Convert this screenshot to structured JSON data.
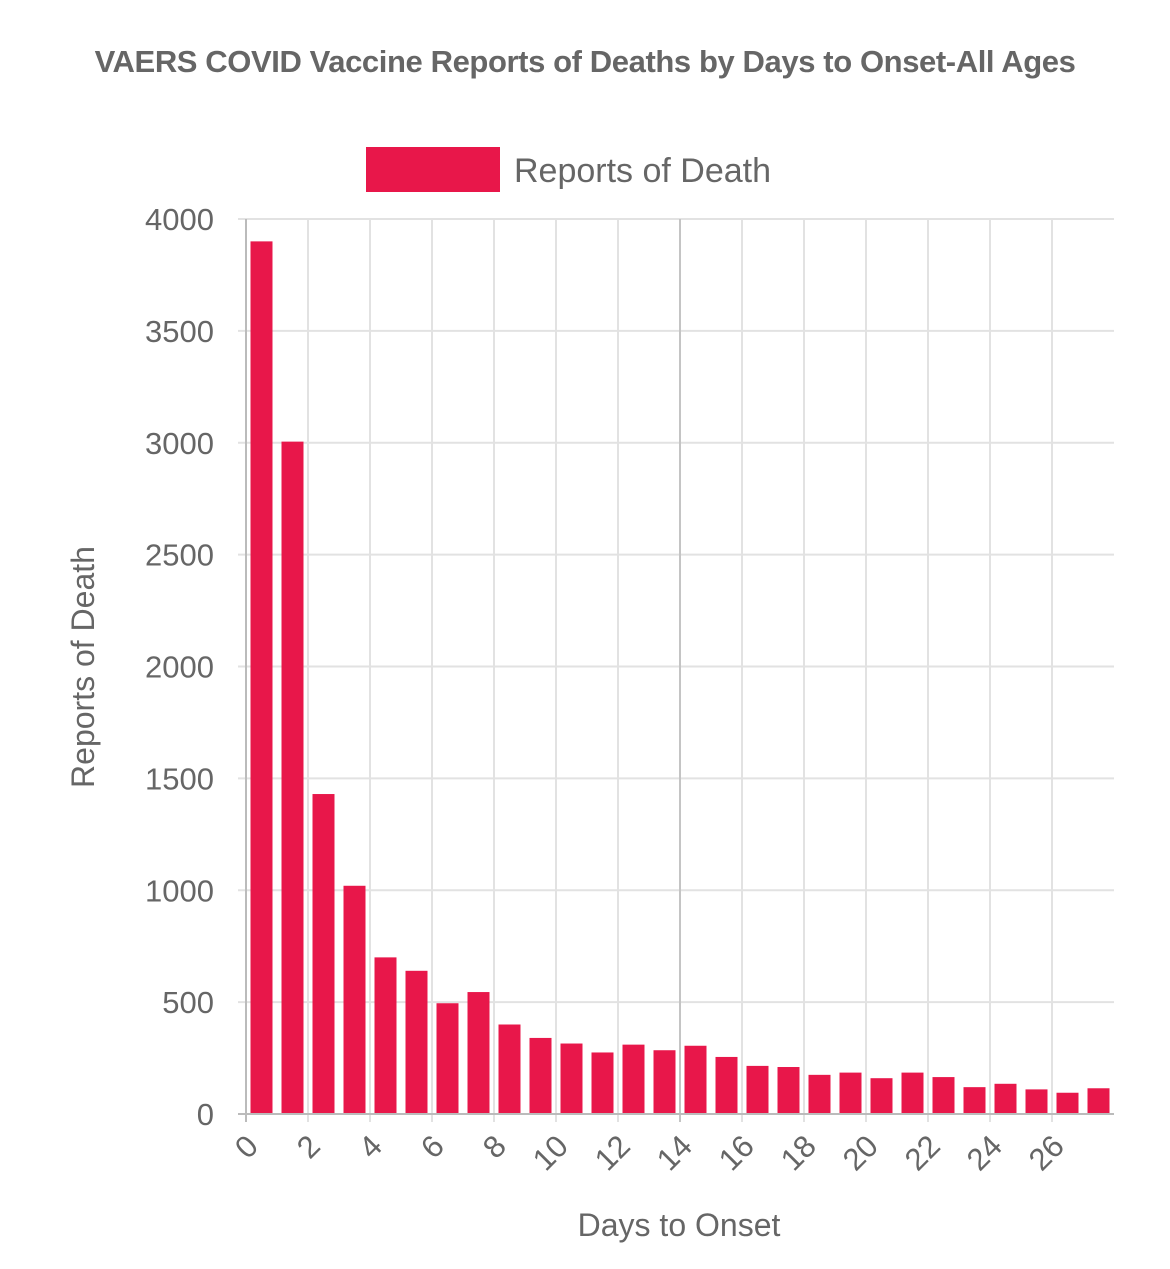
{
  "chart_data": {
    "type": "bar",
    "title": "VAERS COVID Vaccine Reports of Deaths by Days to Onset-All Ages",
    "xlabel": "Days to Onset",
    "ylabel": "Reports of Death",
    "categories": [
      0,
      1,
      2,
      3,
      4,
      5,
      6,
      7,
      8,
      9,
      10,
      11,
      12,
      13,
      14,
      15,
      16,
      17,
      18,
      19,
      20,
      21,
      22,
      23,
      24,
      25,
      26,
      27
    ],
    "x_tick_labels": [
      "0",
      "2",
      "4",
      "6",
      "8",
      "10",
      "12",
      "14",
      "16",
      "18",
      "20",
      "22",
      "24",
      "26"
    ],
    "y_tick_labels": [
      "0",
      "500",
      "1000",
      "1500",
      "2000",
      "2500",
      "3000",
      "3500",
      "4000"
    ],
    "ylim": [
      0,
      4000
    ],
    "grid": true,
    "legend_position": "top",
    "series": [
      {
        "name": "Reports of Death",
        "color": "#e8174a",
        "values": [
          3900,
          3005,
          1430,
          1020,
          700,
          640,
          495,
          545,
          400,
          340,
          315,
          275,
          310,
          285,
          305,
          255,
          215,
          210,
          175,
          185,
          160,
          185,
          165,
          120,
          135,
          110,
          95,
          115
        ]
      }
    ]
  }
}
